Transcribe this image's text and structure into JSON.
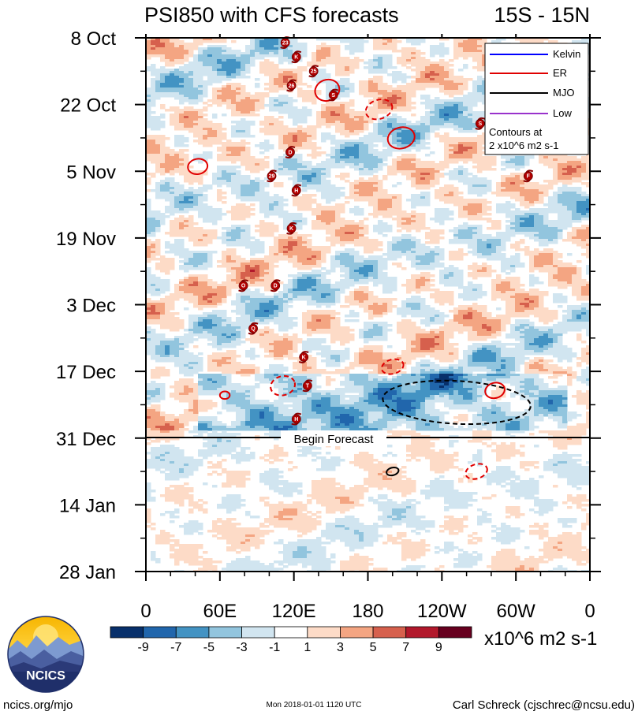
{
  "chart_data": {
    "type": "heatmap",
    "title_left": "PSI850 with CFS forecasts",
    "title_right": "15S - 15N",
    "x_ticks": [
      "0",
      "60E",
      "120E",
      "180",
      "120W",
      "60W",
      "0"
    ],
    "x_range_deg": [
      0,
      360
    ],
    "y_ticks": [
      "8 Oct",
      "22 Oct",
      "5 Nov",
      "19 Nov",
      "3 Dec",
      "17 Dec",
      "31 Dec",
      "14 Jan",
      "28 Jan"
    ],
    "y_range_days": [
      0,
      112
    ],
    "forecast_day": 84,
    "forecast_label": "Begin Forecast",
    "colorbar": {
      "labels": [
        "-9",
        "-7",
        "-5",
        "-3",
        "-1",
        "1",
        "3",
        "5",
        "7",
        "9"
      ],
      "colors": [
        "#08306b",
        "#2166ac",
        "#4393c3",
        "#92c5de",
        "#d1e5f0",
        "#ffffff",
        "#fddbc7",
        "#f4a582",
        "#d6604d",
        "#b2182b",
        "#67001f"
      ],
      "units": "x10^6 m2 s-1"
    },
    "legend": {
      "entries": [
        {
          "name": "Kelvin",
          "color": "#0000ff"
        },
        {
          "name": "ER",
          "color": "#e00000"
        },
        {
          "name": "MJO",
          "color": "#000000"
        },
        {
          "name": "Low",
          "color": "#9932cc"
        }
      ],
      "contour_note_1": "Contours at",
      "contour_note_2": "2 x10^6 m2 s-1"
    },
    "storms": [
      {
        "id": "23",
        "lon": 113,
        "day": 1
      },
      {
        "id": "K",
        "lon": 122,
        "day": 4
      },
      {
        "id": "25",
        "lon": 136,
        "day": 7
      },
      {
        "id": "26",
        "lon": 118,
        "day": 10
      },
      {
        "id": "S",
        "lon": 152,
        "day": 12
      },
      {
        "id": "S",
        "lon": 271,
        "day": 18
      },
      {
        "id": "D",
        "lon": 117,
        "day": 24
      },
      {
        "id": "F",
        "lon": 310,
        "day": 29
      },
      {
        "id": "29",
        "lon": 102,
        "day": 29
      },
      {
        "id": "H",
        "lon": 122,
        "day": 32
      },
      {
        "id": "K",
        "lon": 118,
        "day": 40
      },
      {
        "id": "O",
        "lon": 79,
        "day": 52
      },
      {
        "id": "D",
        "lon": 105,
        "day": 52
      },
      {
        "id": "Q",
        "lon": 87,
        "day": 61
      },
      {
        "id": "K",
        "lon": 128,
        "day": 67
      },
      {
        "id": "T",
        "lon": 131,
        "day": 73
      },
      {
        "id": "H",
        "lon": 122,
        "day": 80
      }
    ],
    "er_contours": [
      {
        "lon": 147,
        "day": 11,
        "rx": 10,
        "ry": 2.2,
        "rot": -20,
        "dashed": false
      },
      {
        "lon": 207,
        "day": 21,
        "rx": 11,
        "ry": 2.2,
        "rot": -15,
        "dashed": false
      },
      {
        "lon": 42,
        "day": 27,
        "rx": 8,
        "ry": 1.6,
        "rot": -10,
        "dashed": false
      },
      {
        "lon": 189,
        "day": 15,
        "rx": 11,
        "ry": 2.0,
        "rot": -18,
        "dashed": true
      },
      {
        "lon": 111,
        "day": 73,
        "rx": 10,
        "ry": 2.0,
        "rot": -15,
        "dashed": true
      },
      {
        "lon": 200,
        "day": 69,
        "rx": 9,
        "ry": 1.5,
        "rot": -15,
        "dashed": true
      },
      {
        "lon": 283,
        "day": 74,
        "rx": 8,
        "ry": 1.6,
        "rot": -15,
        "dashed": false
      },
      {
        "lon": 64,
        "day": 75,
        "rx": 4,
        "ry": 0.8,
        "rot": 0,
        "dashed": false
      },
      {
        "lon": 268,
        "day": 91,
        "rx": 9,
        "ry": 1.5,
        "rot": -18,
        "dashed": true
      }
    ],
    "mjo_contours": [
      {
        "lon": 252,
        "day": 76.5,
        "rx": 60,
        "ry": 4.5,
        "rot": 3,
        "dashed": true
      },
      {
        "lon": 200,
        "day": 91,
        "rx": 5,
        "ry": 0.8,
        "rot": -15,
        "dashed": false
      }
    ]
  },
  "branding": {
    "logo_text": "NCICS",
    "site": "ncics.org/mjo",
    "timestamp": "Mon 2018-01-01 1120 UTC",
    "author": "Carl Schreck (cjschrec@ncsu.edu)"
  }
}
